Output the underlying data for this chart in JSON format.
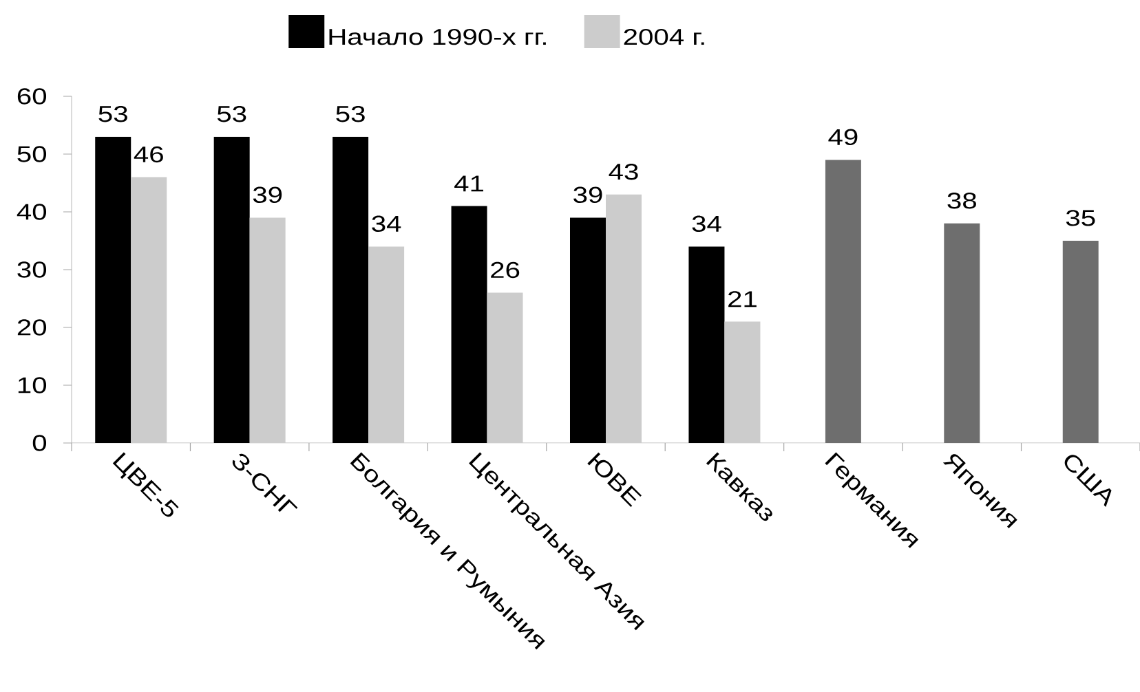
{
  "chart_data": {
    "type": "bar",
    "categories": [
      "ЦВЕ-5",
      "З-СНГ",
      "Болгария и Румыния",
      "Центральная Азия",
      "ЮВЕ",
      "Кавказ",
      "Германия",
      "Япония",
      "США"
    ],
    "series": [
      {
        "name": "Начало 1990-х гг.",
        "color": "#000000",
        "values": [
          53,
          53,
          53,
          41,
          39,
          34,
          null,
          null,
          null
        ]
      },
      {
        "name": "2004 г.",
        "color": "#cccccc",
        "values": [
          46,
          39,
          34,
          26,
          43,
          21,
          null,
          null,
          null
        ]
      },
      {
        "color": "#6e6e6e",
        "values": [
          null,
          null,
          null,
          null,
          null,
          null,
          49,
          38,
          35
        ]
      }
    ],
    "ylim": [
      0,
      60
    ],
    "yticks": [
      0,
      10,
      20,
      30,
      40,
      50,
      60
    ],
    "data_labels": true,
    "legend": "top",
    "grid": false
  }
}
